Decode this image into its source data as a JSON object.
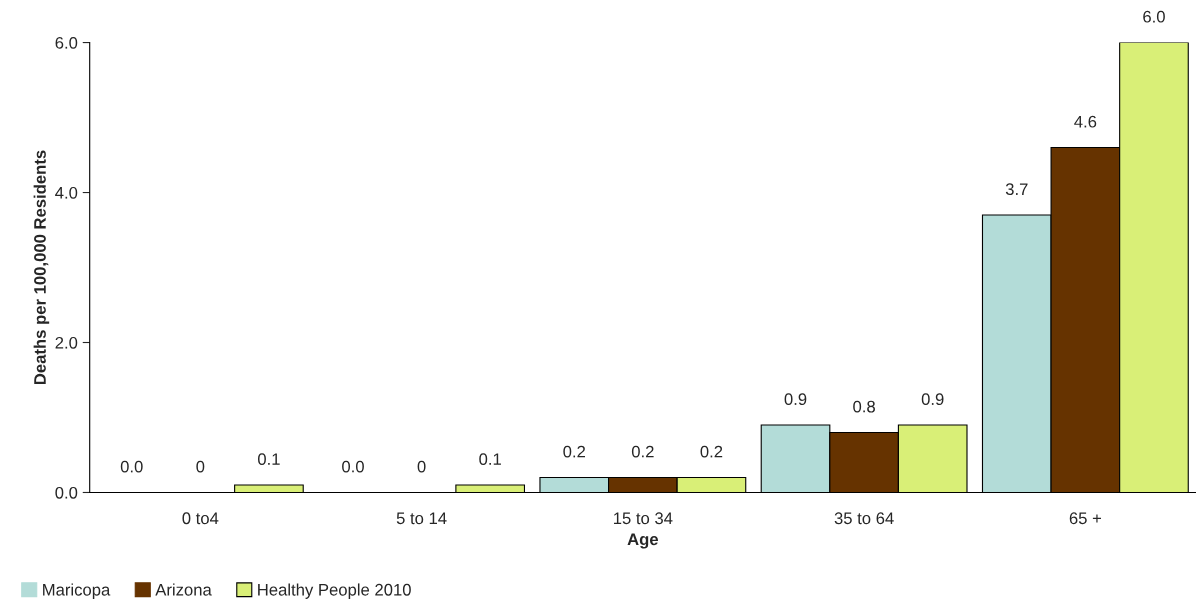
{
  "chart_data": {
    "type": "bar",
    "xlabel": "Age",
    "ylabel": "Deaths per 100,000 Residents",
    "categories": [
      "0 to4",
      "5 to 14",
      "15 to 34",
      "35 to 64",
      "65 +"
    ],
    "series": [
      {
        "name": "Maricopa",
        "color": "#b3dcd8",
        "values": [
          0.0,
          0.0,
          0.2,
          0.9,
          3.7
        ],
        "value_labels": [
          "0.0",
          "0.0",
          "0.2",
          "0.9",
          "3.7"
        ]
      },
      {
        "name": "Arizona",
        "color": "#663300",
        "values": [
          0,
          0,
          0.2,
          0.8,
          4.6
        ],
        "value_labels": [
          "0",
          "0",
          "0.2",
          "0.8",
          "4.6"
        ]
      },
      {
        "name": "Healthy People 2010",
        "color": "#d9ef77",
        "values": [
          0.1,
          0.1,
          0.2,
          0.9,
          6.0
        ],
        "value_labels": [
          "0.1",
          "0.1",
          "0.2",
          "0.9",
          "6.0"
        ]
      }
    ],
    "ylim": [
      0,
      6
    ],
    "yticks": [
      {
        "value": 0,
        "label": "0.0"
      },
      {
        "value": 2,
        "label": "2.0"
      },
      {
        "value": 4,
        "label": "4.0"
      },
      {
        "value": 6,
        "label": "6.0"
      }
    ],
    "grid": false,
    "legend": "bottom left"
  }
}
